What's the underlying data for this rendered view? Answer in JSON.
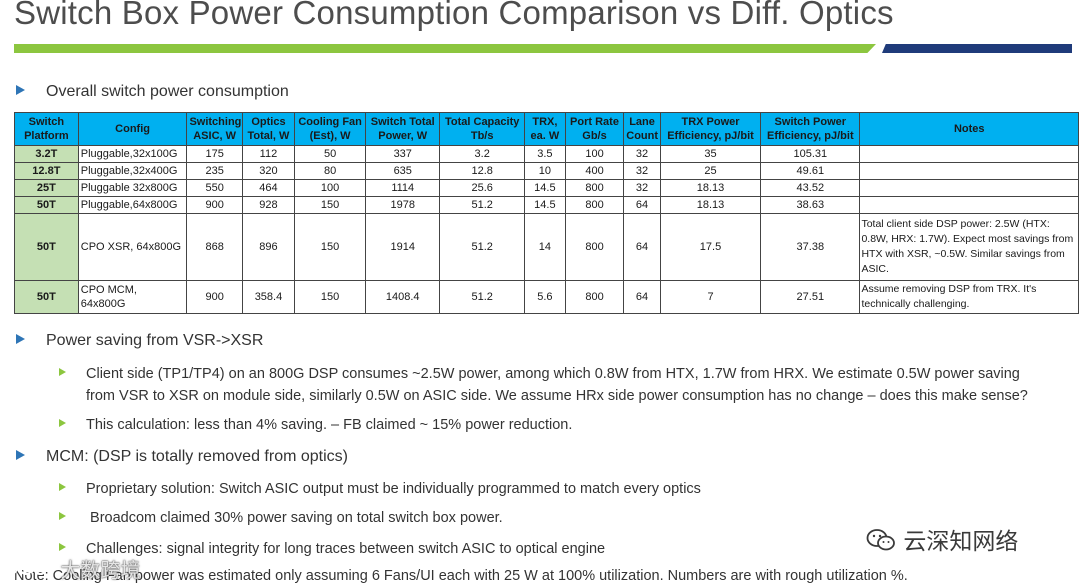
{
  "title": "Switch Box Power Consumption Comparison vs Diff. Optics",
  "section1": "Overall switch power consumption",
  "table": {
    "headers": [
      "Switch Platform",
      "Config",
      "Switching ASIC, W",
      "Optics Total, W",
      "Cooling Fan (Est), W",
      "Switch Total Power, W",
      "Total Capacity Tb/s",
      "TRX, ea. W",
      "Port Rate Gb/s",
      "Lane Count",
      "TRX Power Efficiency, pJ/bit",
      "Switch Power Efficiency, pJ/bit",
      "Notes"
    ],
    "rows": [
      [
        "3.2T",
        "Pluggable,32x100G",
        "175",
        "112",
        "50",
        "337",
        "3.2",
        "3.5",
        "100",
        "32",
        "35",
        "105.31",
        ""
      ],
      [
        "12.8T",
        "Pluggable,32x400G",
        "235",
        "320",
        "80",
        "635",
        "12.8",
        "10",
        "400",
        "32",
        "25",
        "49.61",
        ""
      ],
      [
        "25T",
        "Pluggable 32x800G",
        "550",
        "464",
        "100",
        "1114",
        "25.6",
        "14.5",
        "800",
        "32",
        "18.13",
        "43.52",
        ""
      ],
      [
        "50T",
        "Pluggable,64x800G",
        "900",
        "928",
        "150",
        "1978",
        "51.2",
        "14.5",
        "800",
        "64",
        "18.13",
        "38.63",
        ""
      ],
      [
        "50T",
        "CPO XSR, 64x800G",
        "868",
        "896",
        "150",
        "1914",
        "51.2",
        "14",
        "800",
        "64",
        "17.5",
        "37.38",
        "Total client side DSP power: 2.5W (HTX: 0.8W, HRX: 1.7W). Expect most savings from HTX with XSR, ~0.5W. Similar savings from ASIC."
      ],
      [
        "50T",
        "CPO MCM, 64x800G",
        "900",
        "358.4",
        "150",
        "1408.4",
        "51.2",
        "5.6",
        "800",
        "64",
        "7",
        "27.51",
        "Assume removing DSP from TRX. It's technically challenging."
      ]
    ]
  },
  "section2": "Power saving from VSR->XSR",
  "section2_items": [
    "Client side (TP1/TP4) on an 800G DSP consumes ~2.5W power, among which 0.8W from HTX, 1.7W from HRX. We estimate 0.5W power saving from VSR to XSR on module side, similarly 0.5W on ASIC side. We assume HRx side power consumption has no change – does this make sense?",
    "This calculation: less than 4% saving. – FB claimed ~ 15% power reduction."
  ],
  "section3": "MCM: (DSP is totally removed from optics)",
  "section3_items": [
    "Proprietary solution: Switch ASIC output must be individually programmed to match every optics",
    " Broadcom claimed 30% power saving on total switch box power.",
    "Challenges: signal integrity for long traces between switch ASIC to optical engine"
  ],
  "note": "Note: Cooling Fan power was estimated only assuming 6 Fans/UI each with 25 W at 100% utilization. Numbers are with rough utilization %.",
  "watermark_right": "云深知网络",
  "watermark_left": "大数跨境"
}
